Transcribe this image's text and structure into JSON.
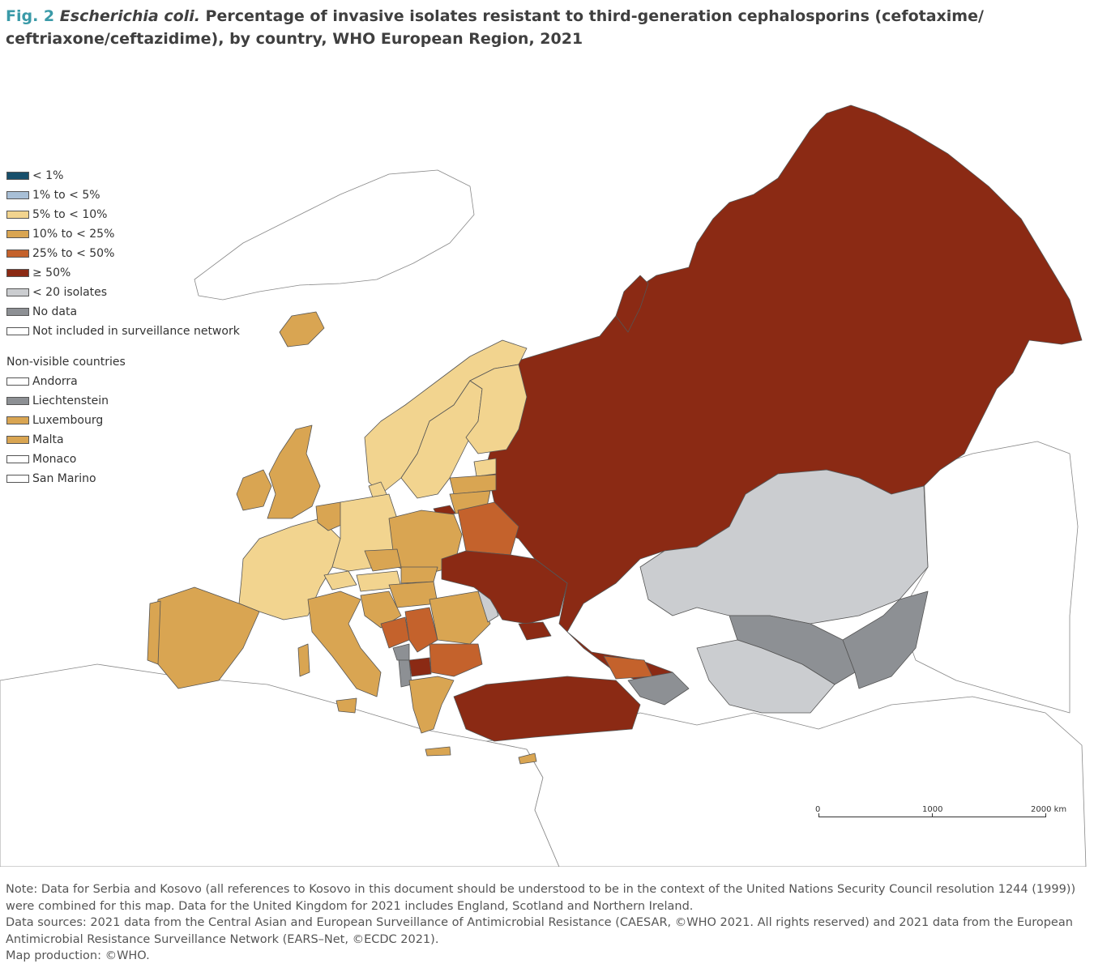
{
  "title": {
    "fig": "Fig. 2",
    "species": "Escherichia coli.",
    "text": " Percentage of invasive isolates resistant to third-generation cephalosporins (cefotaxime/ ceftriaxone/ceftazidime), by country, WHO European Region, 2021"
  },
  "legend": {
    "items": [
      {
        "label": "< 1%",
        "color": "#174f6b"
      },
      {
        "label": "1% to < 5%",
        "color": "#a8bfd6"
      },
      {
        "label": "5% to < 10%",
        "color": "#f2d48f"
      },
      {
        "label": "10% to < 25%",
        "color": "#d9a552"
      },
      {
        "label": "25% to < 50%",
        "color": "#c4622c"
      },
      {
        "label": "≥ 50%",
        "color": "#8b2a14"
      },
      {
        "label": "< 20 isolates",
        "color": "#cbcdd0"
      },
      {
        "label": "No data",
        "color": "#8d9094"
      },
      {
        "label": "Not included in surveillance network",
        "color": "#ffffff"
      }
    ],
    "nonvisible_title": "Non-visible countries",
    "nonvisible": [
      {
        "label": "Andorra",
        "color": "#ffffff"
      },
      {
        "label": "Liechtenstein",
        "color": "#8d9094"
      },
      {
        "label": "Luxembourg",
        "color": "#d9a552"
      },
      {
        "label": "Malta",
        "color": "#d9a552"
      },
      {
        "label": "Monaco",
        "color": "#ffffff"
      },
      {
        "label": "San Marino",
        "color": "#ffffff"
      }
    ]
  },
  "scale": {
    "labels": [
      "0",
      "1000",
      "2000 km"
    ]
  },
  "notes": [
    "Note: Data for Serbia and Kosovo (all references to Kosovo in this document should be understood to be in the context of the United Nations Security Council resolution 1244 (1999)) were combined for this map. Data for the United Kingdom for 2021 includes England, Scotland and Northern Ireland.",
    "Data sources: 2021 data from the Central Asian and European Surveillance of Antimicrobial Resistance (CAESAR, ©WHO 2021. All rights reserved) and 2021 data from the European Antimicrobial Resistance Surveillance Network (EARS–Net, ©ECDC 2021).",
    "Map production: ©WHO."
  ]
}
